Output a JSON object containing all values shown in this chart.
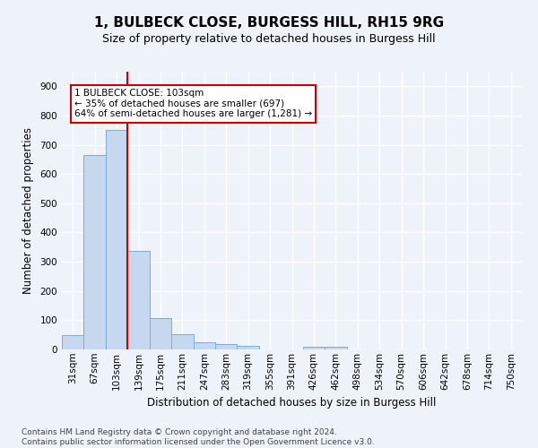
{
  "title": "1, BULBECK CLOSE, BURGESS HILL, RH15 9RG",
  "subtitle": "Size of property relative to detached houses in Burgess Hill",
  "xlabel": "Distribution of detached houses by size in Burgess Hill",
  "ylabel": "Number of detached properties",
  "footer_line1": "Contains HM Land Registry data © Crown copyright and database right 2024.",
  "footer_line2": "Contains public sector information licensed under the Open Government Licence v3.0.",
  "bar_labels": [
    "31sqm",
    "67sqm",
    "103sqm",
    "139sqm",
    "175sqm",
    "211sqm",
    "247sqm",
    "283sqm",
    "319sqm",
    "355sqm",
    "391sqm",
    "426sqm",
    "462sqm",
    "498sqm",
    "534sqm",
    "570sqm",
    "606sqm",
    "642sqm",
    "678sqm",
    "714sqm",
    "750sqm"
  ],
  "bar_values": [
    50,
    665,
    750,
    337,
    108,
    52,
    25,
    17,
    12,
    0,
    0,
    10,
    10,
    0,
    0,
    0,
    0,
    0,
    0,
    0,
    0
  ],
  "bar_color": "#c5d8f0",
  "bar_edge_color": "#7aaed4",
  "property_bar_index": 2,
  "vline_color": "#cc0000",
  "annotation_text_line1": "1 BULBECK CLOSE: 103sqm",
  "annotation_text_line2": "← 35% of detached houses are smaller (697)",
  "annotation_text_line3": "64% of semi-detached houses are larger (1,281) →",
  "annotation_box_edge_color": "#cc0000",
  "annotation_box_face_color": "#ffffff",
  "background_color": "#eef2f9",
  "grid_color": "#ffffff",
  "ylim": [
    0,
    950
  ],
  "yticks": [
    0,
    100,
    200,
    300,
    400,
    500,
    600,
    700,
    800,
    900
  ],
  "title_fontsize": 11,
  "subtitle_fontsize": 9,
  "ylabel_fontsize": 8.5,
  "xlabel_fontsize": 8.5,
  "tick_fontsize": 7.5,
  "annotation_fontsize": 7.5,
  "footer_fontsize": 6.5
}
